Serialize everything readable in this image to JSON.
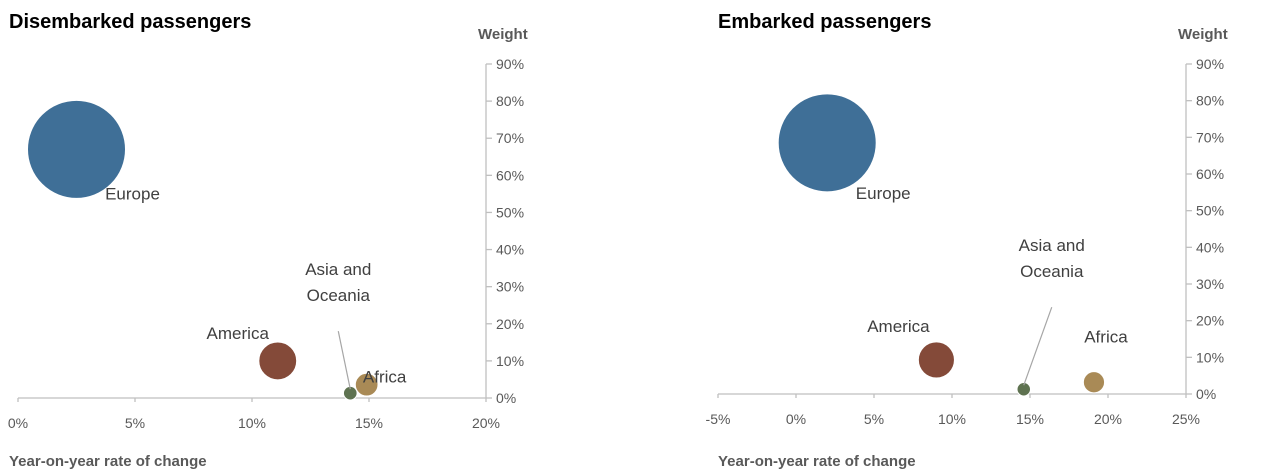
{
  "chart_data": [
    {
      "type": "bubble",
      "title": "Disembarked passengers",
      "xlabel": "Year-on-year rate of change",
      "ylabel": "Weight",
      "xlim": [
        0,
        20
      ],
      "ylim": [
        0,
        90
      ],
      "x_ticks": [
        "0%",
        "5%",
        "10%",
        "15%",
        "20%"
      ],
      "y_ticks": [
        "0%",
        "10%",
        "20%",
        "30%",
        "40%",
        "50%",
        "60%",
        "70%",
        "80%",
        "90%"
      ],
      "grid": false,
      "series": [
        {
          "label_lines": [
            "Europe"
          ],
          "x": 2.5,
          "y": 67,
          "size": 67,
          "color": "#3f6f97"
        },
        {
          "label_lines": [
            "America"
          ],
          "x": 11.1,
          "y": 10,
          "size": 10,
          "color": "#844a39"
        },
        {
          "label_lines": [
            "Asia and",
            "Oceania"
          ],
          "x": 14.2,
          "y": 1.3,
          "size": 1.3,
          "color": "#5e7250"
        },
        {
          "label_lines": [
            "Africa"
          ],
          "x": 14.9,
          "y": 3.6,
          "size": 3.6,
          "color": "#a98a56"
        }
      ]
    },
    {
      "type": "bubble",
      "title": "Embarked passengers",
      "xlabel": "Year-on-year rate of change",
      "ylabel": "Weight",
      "xlim": [
        -5,
        25
      ],
      "ylim": [
        0,
        90
      ],
      "x_ticks": [
        "-5%",
        "0%",
        "5%",
        "10%",
        "15%",
        "20%",
        "25%"
      ],
      "y_ticks": [
        "0%",
        "10%",
        "20%",
        "30%",
        "40%",
        "50%",
        "60%",
        "70%",
        "80%",
        "90%"
      ],
      "grid": false,
      "series": [
        {
          "label_lines": [
            "Europe"
          ],
          "x": 2,
          "y": 68.5,
          "size": 68.5,
          "color": "#3f6f97"
        },
        {
          "label_lines": [
            "America"
          ],
          "x": 9,
          "y": 9.3,
          "size": 9.3,
          "color": "#844a39"
        },
        {
          "label_lines": [
            "Asia and",
            "Oceania"
          ],
          "x": 14.6,
          "y": 1.3,
          "size": 1.3,
          "color": "#5e7250"
        },
        {
          "label_lines": [
            "Africa"
          ],
          "x": 19.1,
          "y": 3.2,
          "size": 3.2,
          "color": "#a98a56"
        }
      ]
    }
  ]
}
